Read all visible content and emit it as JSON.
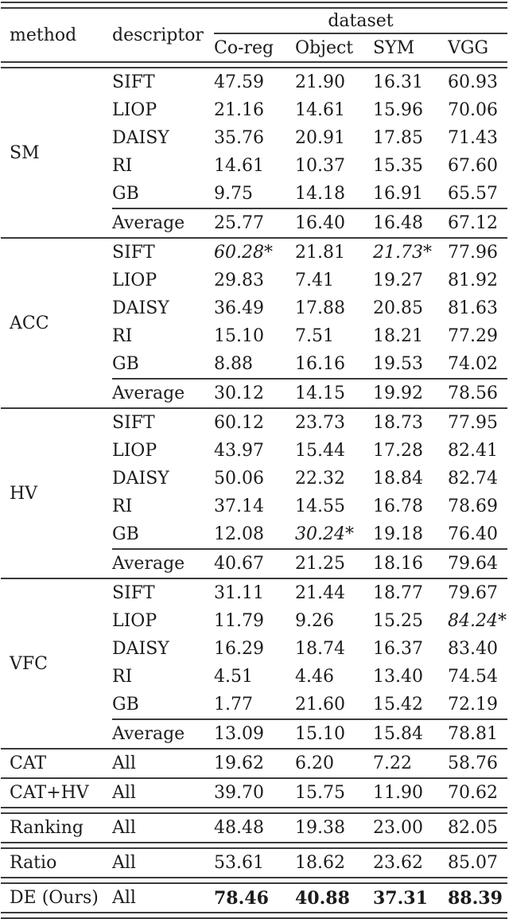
{
  "table": {
    "header": {
      "method": "method",
      "descriptor": "descriptor",
      "dataset": "dataset",
      "datasets": [
        "Co-reg",
        "Object",
        "SYM",
        "VGG"
      ]
    },
    "blocks": [
      {
        "method": "SM",
        "rows": [
          {
            "descriptor": "SIFT",
            "values": [
              "47.59",
              "21.90",
              "16.31",
              "60.93"
            ]
          },
          {
            "descriptor": "LIOP",
            "values": [
              "21.16",
              "14.61",
              "15.96",
              "70.06"
            ]
          },
          {
            "descriptor": "DAISY",
            "values": [
              "35.76",
              "20.91",
              "17.85",
              "71.43"
            ]
          },
          {
            "descriptor": "RI",
            "values": [
              "14.61",
              "10.37",
              "15.35",
              "67.60"
            ]
          },
          {
            "descriptor": "GB",
            "values": [
              "9.75",
              "14.18",
              "16.91",
              "65.57"
            ]
          },
          {
            "descriptor": "Average",
            "avg": true,
            "values": [
              "25.77",
              "16.40",
              "16.48",
              "67.12"
            ]
          }
        ]
      },
      {
        "method": "ACC",
        "rows": [
          {
            "descriptor": "SIFT",
            "values": [
              "60.28*",
              "21.81",
              "21.73*",
              "77.96"
            ],
            "em": [
              0,
              2
            ]
          },
          {
            "descriptor": "LIOP",
            "values": [
              "29.83",
              "7.41",
              "19.27",
              "81.92"
            ]
          },
          {
            "descriptor": "DAISY",
            "values": [
              "36.49",
              "17.88",
              "20.85",
              "81.63"
            ]
          },
          {
            "descriptor": "RI",
            "values": [
              "15.10",
              "7.51",
              "18.21",
              "77.29"
            ]
          },
          {
            "descriptor": "GB",
            "values": [
              "8.88",
              "16.16",
              "19.53",
              "74.02"
            ]
          },
          {
            "descriptor": "Average",
            "avg": true,
            "values": [
              "30.12",
              "14.15",
              "19.92",
              "78.56"
            ]
          }
        ]
      },
      {
        "method": "HV",
        "rows": [
          {
            "descriptor": "SIFT",
            "values": [
              "60.12",
              "23.73",
              "18.73",
              "77.95"
            ]
          },
          {
            "descriptor": "LIOP",
            "values": [
              "43.97",
              "15.44",
              "17.28",
              "82.41"
            ]
          },
          {
            "descriptor": "DAISY",
            "values": [
              "50.06",
              "22.32",
              "18.84",
              "82.74"
            ]
          },
          {
            "descriptor": "RI",
            "values": [
              "37.14",
              "14.55",
              "16.78",
              "78.69"
            ]
          },
          {
            "descriptor": "GB",
            "values": [
              "12.08",
              "30.24*",
              "19.18",
              "76.40"
            ],
            "em": [
              1
            ]
          },
          {
            "descriptor": "Average",
            "avg": true,
            "values": [
              "40.67",
              "21.25",
              "18.16",
              "79.64"
            ]
          }
        ]
      },
      {
        "method": "VFC",
        "rows": [
          {
            "descriptor": "SIFT",
            "values": [
              "31.11",
              "21.44",
              "18.77",
              "79.67"
            ]
          },
          {
            "descriptor": "LIOP",
            "values": [
              "11.79",
              "9.26",
              "15.25",
              "84.24*"
            ],
            "em": [
              3
            ]
          },
          {
            "descriptor": "DAISY",
            "values": [
              "16.29",
              "18.74",
              "16.37",
              "83.40"
            ]
          },
          {
            "descriptor": "RI",
            "values": [
              "4.51",
              "4.46",
              "13.40",
              "74.54"
            ]
          },
          {
            "descriptor": "GB",
            "values": [
              "1.77",
              "21.60",
              "15.42",
              "72.19"
            ]
          },
          {
            "descriptor": "Average",
            "avg": true,
            "values": [
              "13.09",
              "15.10",
              "15.84",
              "78.81"
            ]
          }
        ]
      }
    ],
    "summary_rows": [
      {
        "method": "CAT",
        "descriptor": "All",
        "values": [
          "19.62",
          "6.20",
          "7.22",
          "58.76"
        ],
        "rule_after": "single"
      },
      {
        "method": "CAT+HV",
        "descriptor": "All",
        "values": [
          "39.70",
          "15.75",
          "11.90",
          "70.62"
        ],
        "rule_after": "double"
      },
      {
        "method": "Ranking",
        "descriptor": "All",
        "values": [
          "48.48",
          "19.38",
          "23.00",
          "82.05"
        ],
        "rule_after": "double"
      },
      {
        "method": "Ratio",
        "descriptor": "All",
        "values": [
          "53.61",
          "18.62",
          "23.62",
          "85.07"
        ],
        "rule_after": "double"
      },
      {
        "method": "DE (Ours)",
        "descriptor": "All",
        "values": [
          "78.46",
          "40.88",
          "37.31",
          "88.39"
        ],
        "bold": true,
        "rule_after": "double"
      }
    ],
    "rule_color": "#3a3a3a",
    "text_color": "#1b1b1b",
    "background_color": "#ffffff"
  }
}
